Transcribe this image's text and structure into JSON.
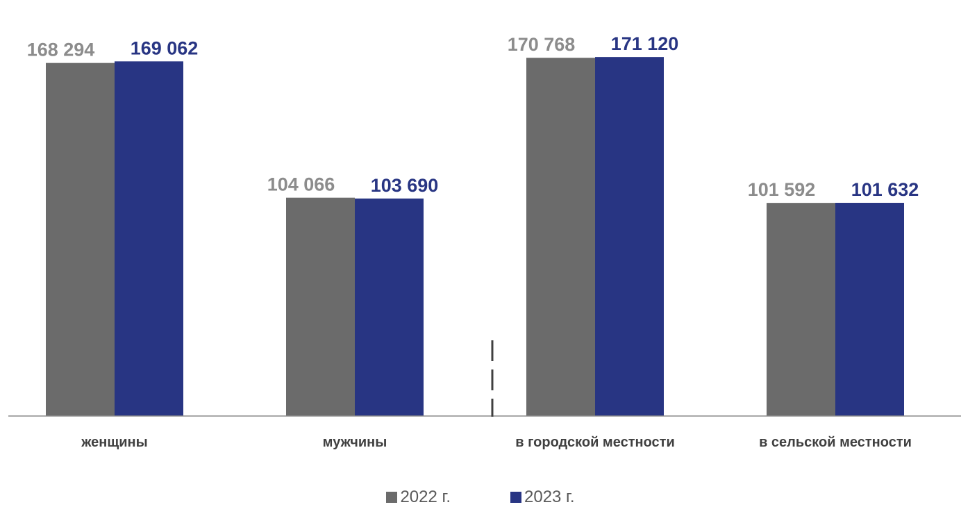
{
  "chart_data": {
    "type": "bar",
    "categories": [
      "женщины",
      "мужчины",
      "в городской местности",
      "в сельской местности"
    ],
    "series": [
      {
        "name": "2022 г.",
        "color": "#6b6b6b",
        "label_color": "#8c8c8c",
        "values": [
          168294,
          104066,
          170768,
          101592
        ],
        "labels": [
          "168 294",
          "104 066",
          "170 768",
          "101 592"
        ]
      },
      {
        "name": "2023 г.",
        "color": "#283583",
        "label_color": "#283583",
        "values": [
          169062,
          103690,
          171120,
          101632
        ],
        "labels": [
          "169 062",
          "103 690",
          "171 120",
          "101 632"
        ]
      }
    ],
    "ylim": [
      0,
      195000
    ],
    "grid": false,
    "legend_position": "bottom",
    "group_separator_after": 1
  }
}
